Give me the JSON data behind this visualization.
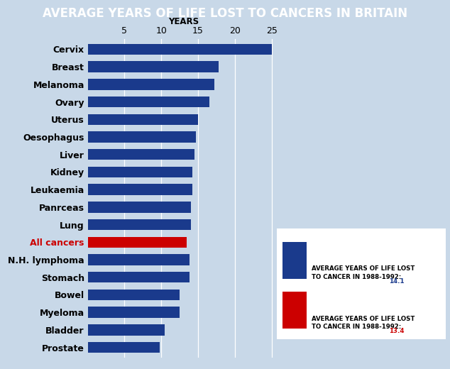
{
  "title": "AVERAGE YEARS OF LIFE LOST TO CANCERS IN BRITAIN",
  "categories": [
    "Cervix",
    "Breast",
    "Melanoma",
    "Ovary",
    "Uterus",
    "Oesophagus",
    "Liver",
    "Kidney",
    "Leukaemia",
    "Panrceas",
    "Lung",
    "All cancers",
    "N.H. lymphoma",
    "Stomach",
    "Bowel",
    "Myeloma",
    "Bladder",
    "Prostate"
  ],
  "values": [
    25.0,
    17.8,
    17.2,
    16.5,
    15.0,
    14.7,
    14.5,
    14.2,
    14.2,
    14.0,
    14.0,
    13.4,
    13.8,
    13.8,
    12.5,
    12.5,
    10.5,
    9.8
  ],
  "bar_colors": [
    "#1a3a8c",
    "#1a3a8c",
    "#1a3a8c",
    "#1a3a8c",
    "#1a3a8c",
    "#1a3a8c",
    "#1a3a8c",
    "#1a3a8c",
    "#1a3a8c",
    "#1a3a8c",
    "#1a3a8c",
    "#cc0000",
    "#1a3a8c",
    "#1a3a8c",
    "#1a3a8c",
    "#1a3a8c",
    "#1a3a8c",
    "#1a3a8c"
  ],
  "label_colors": [
    "black",
    "black",
    "black",
    "black",
    "black",
    "black",
    "black",
    "black",
    "black",
    "black",
    "black",
    "#cc0000",
    "black",
    "black",
    "black",
    "black",
    "black",
    "black"
  ],
  "xlim": [
    0,
    26
  ],
  "xticks": [
    5,
    10,
    15,
    20,
    25
  ],
  "xlabel": "YEARS",
  "legend_blue_text": "AVERAGE YEARS OF LIFE LOST\nTO CANCER IN 1988-1992: ",
  "legend_red_text": "AVERAGE YEARS OF LIFE LOST\nTO CANCER IN 1988-1992: ",
  "legend_blue_value": "14.1",
  "legend_red_value": "13.4",
  "title_fontsize": 12,
  "bar_height": 0.62,
  "background_color": "#c8d8e8",
  "title_bg_color": "#1a3a8c",
  "title_text_color": "white",
  "blue_color": "#1a3a8c",
  "red_color": "#cc0000"
}
